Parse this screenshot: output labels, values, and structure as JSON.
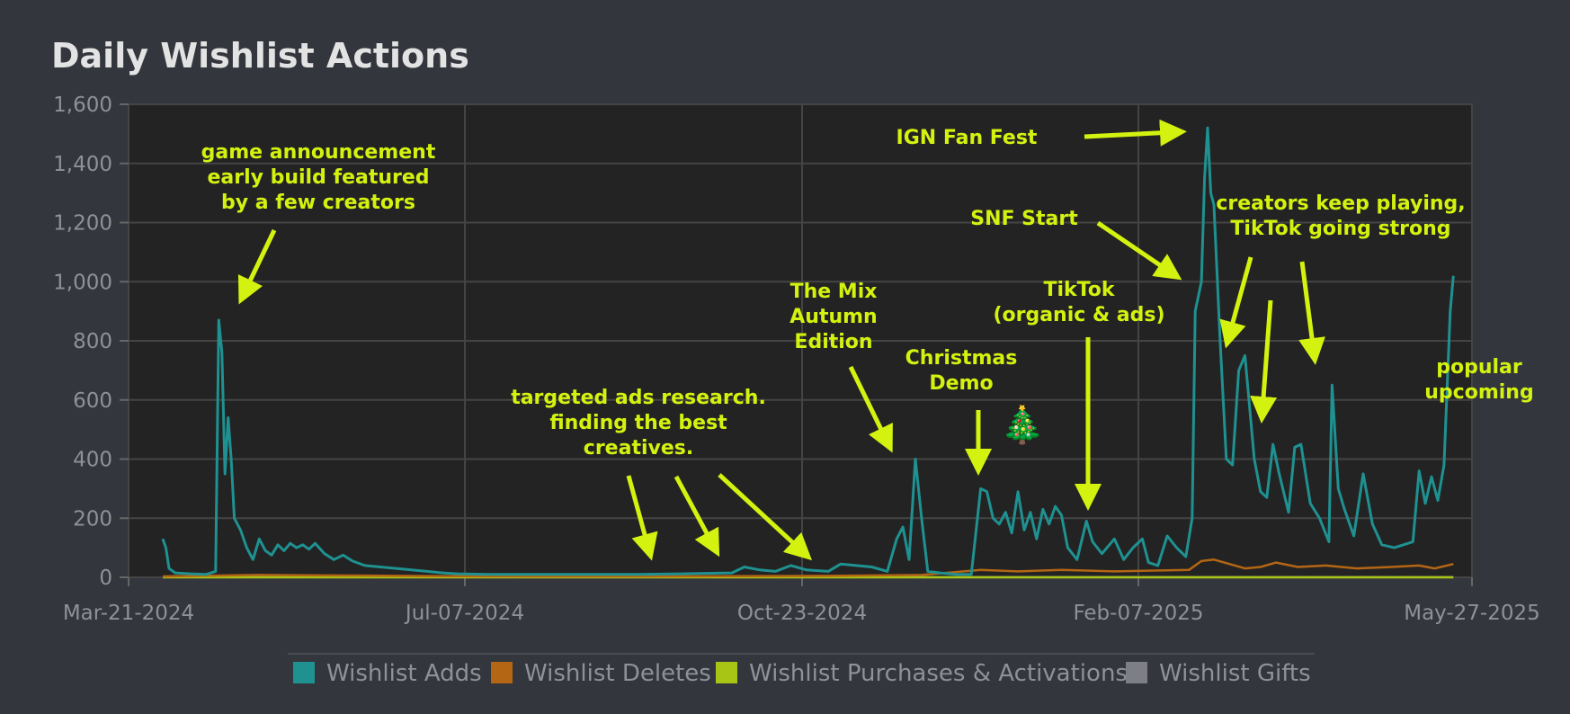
{
  "chart_data": {
    "type": "line",
    "title": "Daily Wishlist Actions",
    "ylim": [
      0,
      1600
    ],
    "yticks": [
      0,
      200,
      400,
      600,
      800,
      1000,
      1200,
      1400,
      1600
    ],
    "ytick_labels": [
      "0",
      "200",
      "400",
      "600",
      "800",
      "1,000",
      "1,200",
      "1,400",
      "1,600"
    ],
    "xticks": [
      "Mar-21-2024",
      "Jul-07-2024",
      "Oct-23-2024",
      "Feb-07-2025",
      "May-27-2025"
    ],
    "grid": true,
    "legend_position": "bottom",
    "series": [
      {
        "name": "Wishlist Adds",
        "color": "#1f9191",
        "points": [
          [
            "2024-04-01",
            130
          ],
          [
            "2024-04-02",
            100
          ],
          [
            "2024-04-03",
            30
          ],
          [
            "2024-04-05",
            15
          ],
          [
            "2024-04-10",
            12
          ],
          [
            "2024-04-15",
            10
          ],
          [
            "2024-04-18",
            20
          ],
          [
            "2024-04-19",
            870
          ],
          [
            "2024-04-20",
            760
          ],
          [
            "2024-04-21",
            350
          ],
          [
            "2024-04-22",
            540
          ],
          [
            "2024-04-23",
            400
          ],
          [
            "2024-04-24",
            200
          ],
          [
            "2024-04-26",
            160
          ],
          [
            "2024-04-28",
            100
          ],
          [
            "2024-04-30",
            60
          ],
          [
            "2024-05-02",
            130
          ],
          [
            "2024-05-04",
            90
          ],
          [
            "2024-05-06",
            75
          ],
          [
            "2024-05-08",
            110
          ],
          [
            "2024-05-10",
            90
          ],
          [
            "2024-05-12",
            115
          ],
          [
            "2024-05-14",
            100
          ],
          [
            "2024-05-16",
            110
          ],
          [
            "2024-05-18",
            95
          ],
          [
            "2024-05-20",
            115
          ],
          [
            "2024-05-23",
            80
          ],
          [
            "2024-05-26",
            60
          ],
          [
            "2024-05-29",
            75
          ],
          [
            "2024-06-01",
            55
          ],
          [
            "2024-06-05",
            40
          ],
          [
            "2024-06-10",
            35
          ],
          [
            "2024-06-15",
            30
          ],
          [
            "2024-06-20",
            25
          ],
          [
            "2024-06-25",
            20
          ],
          [
            "2024-06-30",
            15
          ],
          [
            "2024-07-05",
            12
          ],
          [
            "2024-07-15",
            10
          ],
          [
            "2024-08-01",
            10
          ],
          [
            "2024-08-15",
            10
          ],
          [
            "2024-09-01",
            10
          ],
          [
            "2024-09-15",
            12
          ],
          [
            "2024-10-01",
            15
          ],
          [
            "2024-10-05",
            35
          ],
          [
            "2024-10-10",
            25
          ],
          [
            "2024-10-15",
            20
          ],
          [
            "2024-10-20",
            40
          ],
          [
            "2024-10-25",
            25
          ],
          [
            "2024-11-01",
            20
          ],
          [
            "2024-11-05",
            45
          ],
          [
            "2024-11-10",
            40
          ],
          [
            "2024-11-15",
            35
          ],
          [
            "2024-11-20",
            20
          ],
          [
            "2024-11-23",
            130
          ],
          [
            "2024-11-25",
            170
          ],
          [
            "2024-11-27",
            60
          ],
          [
            "2024-11-29",
            400
          ],
          [
            "2024-12-01",
            200
          ],
          [
            "2024-12-03",
            20
          ],
          [
            "2024-12-07",
            15
          ],
          [
            "2024-12-12",
            10
          ],
          [
            "2024-12-17",
            10
          ],
          [
            "2024-12-20",
            300
          ],
          [
            "2024-12-22",
            290
          ],
          [
            "2024-12-24",
            200
          ],
          [
            "2024-12-26",
            180
          ],
          [
            "2024-12-28",
            220
          ],
          [
            "2024-12-30",
            150
          ],
          [
            "2025-01-01",
            290
          ],
          [
            "2025-01-03",
            160
          ],
          [
            "2025-01-05",
            220
          ],
          [
            "2025-01-07",
            130
          ],
          [
            "2025-01-09",
            230
          ],
          [
            "2025-01-11",
            180
          ],
          [
            "2025-01-13",
            240
          ],
          [
            "2025-01-15",
            210
          ],
          [
            "2025-01-17",
            100
          ],
          [
            "2025-01-20",
            60
          ],
          [
            "2025-01-23",
            190
          ],
          [
            "2025-01-25",
            120
          ],
          [
            "2025-01-28",
            80
          ],
          [
            "2025-02-01",
            130
          ],
          [
            "2025-02-04",
            60
          ],
          [
            "2025-02-07",
            100
          ],
          [
            "2025-02-10",
            130
          ],
          [
            "2025-02-12",
            50
          ],
          [
            "2025-02-15",
            40
          ],
          [
            "2025-02-18",
            140
          ],
          [
            "2025-02-21",
            100
          ],
          [
            "2025-02-24",
            70
          ],
          [
            "2025-02-26",
            200
          ],
          [
            "2025-02-27",
            900
          ],
          [
            "2025-03-01",
            1000
          ],
          [
            "2025-03-02",
            1350
          ],
          [
            "2025-03-03",
            1520
          ],
          [
            "2025-03-04",
            1300
          ],
          [
            "2025-03-05",
            1260
          ],
          [
            "2025-03-07",
            800
          ],
          [
            "2025-03-09",
            400
          ],
          [
            "2025-03-11",
            380
          ],
          [
            "2025-03-13",
            700
          ],
          [
            "2025-03-15",
            750
          ],
          [
            "2025-03-18",
            400
          ],
          [
            "2025-03-20",
            290
          ],
          [
            "2025-03-22",
            270
          ],
          [
            "2025-03-24",
            450
          ],
          [
            "2025-03-26",
            350
          ],
          [
            "2025-03-29",
            220
          ],
          [
            "2025-03-31",
            440
          ],
          [
            "2025-04-02",
            450
          ],
          [
            "2025-04-05",
            250
          ],
          [
            "2025-04-08",
            200
          ],
          [
            "2025-04-11",
            120
          ],
          [
            "2025-04-12",
            650
          ],
          [
            "2025-04-14",
            300
          ],
          [
            "2025-04-16",
            230
          ],
          [
            "2025-04-19",
            140
          ],
          [
            "2025-04-22",
            350
          ],
          [
            "2025-04-25",
            180
          ],
          [
            "2025-04-28",
            110
          ],
          [
            "2025-05-02",
            100
          ],
          [
            "2025-05-05",
            110
          ],
          [
            "2025-05-08",
            120
          ],
          [
            "2025-05-10",
            360
          ],
          [
            "2025-05-12",
            250
          ],
          [
            "2025-05-14",
            340
          ],
          [
            "2025-05-16",
            260
          ],
          [
            "2025-05-18",
            380
          ],
          [
            "2025-05-20",
            900
          ],
          [
            "2025-05-21",
            1020
          ]
        ]
      },
      {
        "name": "Wishlist Deletes",
        "color": "#b46614",
        "points": [
          [
            "2024-04-01",
            3
          ],
          [
            "2024-05-01",
            8
          ],
          [
            "2024-06-01",
            6
          ],
          [
            "2024-07-01",
            4
          ],
          [
            "2024-08-01",
            3
          ],
          [
            "2024-09-01",
            3
          ],
          [
            "2024-10-01",
            4
          ],
          [
            "2024-11-01",
            5
          ],
          [
            "2024-12-01",
            8
          ],
          [
            "2024-12-20",
            25
          ],
          [
            "2025-01-01",
            20
          ],
          [
            "2025-01-15",
            25
          ],
          [
            "2025-02-01",
            20
          ],
          [
            "2025-02-25",
            25
          ],
          [
            "2025-03-01",
            55
          ],
          [
            "2025-03-05",
            60
          ],
          [
            "2025-03-10",
            45
          ],
          [
            "2025-03-15",
            30
          ],
          [
            "2025-03-20",
            35
          ],
          [
            "2025-03-25",
            50
          ],
          [
            "2025-04-01",
            35
          ],
          [
            "2025-04-10",
            40
          ],
          [
            "2025-04-20",
            30
          ],
          [
            "2025-05-01",
            35
          ],
          [
            "2025-05-10",
            40
          ],
          [
            "2025-05-15",
            30
          ],
          [
            "2025-05-21",
            45
          ]
        ]
      },
      {
        "name": "Wishlist Purchases & Activations",
        "color": "#a8c414",
        "points": [
          [
            "2024-04-01",
            0
          ],
          [
            "2025-05-21",
            0
          ]
        ]
      },
      {
        "name": "Wishlist Gifts",
        "color": "#7d7f84",
        "points": [
          [
            "2024-04-01",
            1
          ],
          [
            "2025-05-21",
            1
          ]
        ]
      }
    ],
    "annotations": [
      {
        "lines": [
          "game announcement",
          "early build featured",
          "by a few creators"
        ]
      },
      {
        "lines": [
          "targeted ads research.",
          "finding the best",
          "creatives."
        ]
      },
      {
        "lines": [
          "The Mix",
          "Autumn",
          "Edition"
        ]
      },
      {
        "lines": [
          "Christmas",
          "Demo"
        ],
        "emoji": "🎄"
      },
      {
        "lines": [
          "IGN Fan Fest"
        ]
      },
      {
        "lines": [
          "SNF Start"
        ]
      },
      {
        "lines": [
          "TikTok",
          "(organic & ads)"
        ]
      },
      {
        "lines": [
          "creators keep playing,",
          "TikTok going strong"
        ]
      },
      {
        "lines": [
          "popular",
          "upcoming"
        ]
      }
    ],
    "annotation_color": "#d4f20f"
  }
}
